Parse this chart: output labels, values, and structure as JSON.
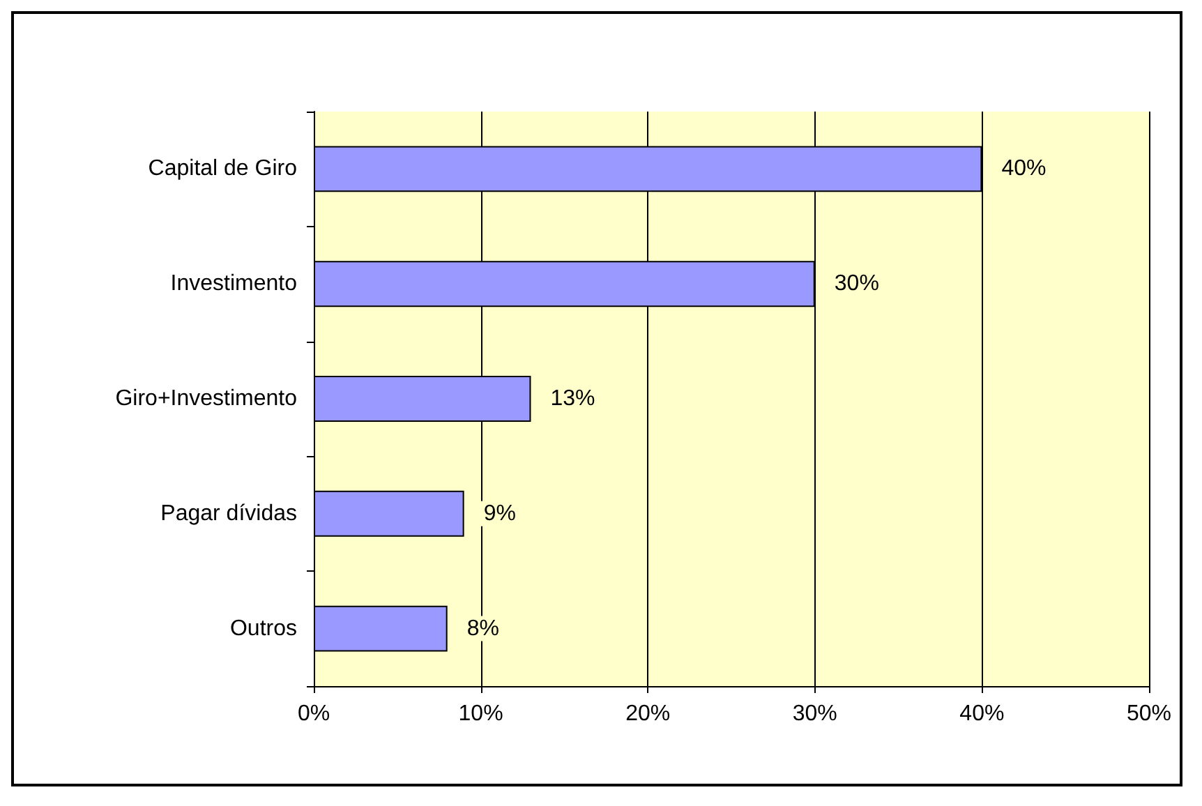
{
  "chart_data": {
    "type": "bar",
    "orientation": "horizontal",
    "categories": [
      "Capital de Giro",
      "Investimento",
      "Giro+Investimento",
      "Pagar dívidas",
      "Outros"
    ],
    "values": [
      40,
      30,
      13,
      9,
      8
    ],
    "value_labels": [
      "40%",
      "30%",
      "13%",
      "9%",
      "8%"
    ],
    "color": "#9999ff",
    "xlim": [
      0,
      50
    ],
    "xticks": [
      {
        "value": 0,
        "label": "0%"
      },
      {
        "value": 10,
        "label": "10%"
      },
      {
        "value": 20,
        "label": "20%"
      },
      {
        "value": 30,
        "label": "30%"
      },
      {
        "value": 40,
        "label": "40%"
      },
      {
        "value": 50,
        "label": "50%"
      }
    ],
    "grid": "x"
  }
}
